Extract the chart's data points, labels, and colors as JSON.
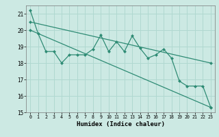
{
  "xlabel": "Humidex (Indice chaleur)",
  "xlim": [
    -0.5,
    23.5
  ],
  "ylim": [
    15,
    21.5
  ],
  "yticks": [
    15,
    16,
    17,
    18,
    19,
    20,
    21
  ],
  "xticks": [
    0,
    1,
    2,
    3,
    4,
    5,
    6,
    7,
    8,
    9,
    10,
    11,
    12,
    13,
    14,
    15,
    16,
    17,
    18,
    19,
    20,
    21,
    22,
    23
  ],
  "bg_color": "#cce9e3",
  "grid_color": "#b0d8d0",
  "line_color": "#2e8b74",
  "line1_x": [
    0,
    1,
    2,
    3,
    4,
    5,
    6,
    7,
    8,
    9,
    10,
    11,
    12,
    13,
    14,
    15,
    16,
    17,
    18,
    19,
    20,
    21,
    22,
    23
  ],
  "line1_y": [
    21.2,
    19.8,
    18.7,
    18.7,
    18.0,
    18.5,
    18.5,
    18.5,
    18.85,
    19.7,
    18.7,
    19.3,
    18.7,
    19.65,
    18.9,
    18.3,
    18.5,
    18.85,
    18.3,
    16.9,
    16.6,
    16.6,
    16.6,
    15.3
  ],
  "line2_x": [
    0,
    23
  ],
  "line2_y": [
    20.5,
    18.0
  ],
  "line3_x": [
    0,
    23
  ],
  "line3_y": [
    20.0,
    15.3
  ],
  "markersize": 2.5,
  "linewidth": 0.9
}
